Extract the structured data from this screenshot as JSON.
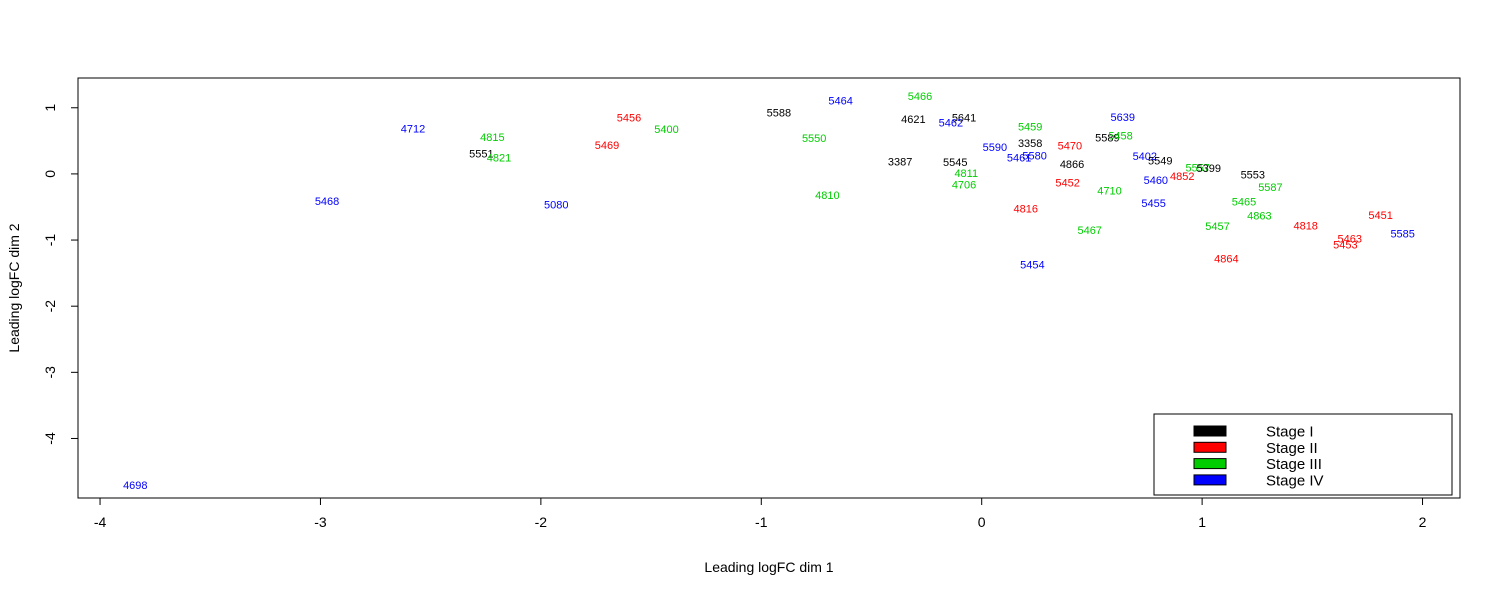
{
  "chart_data": {
    "type": "scatter",
    "title": "",
    "xlabel": "Leading logFC dim 1",
    "ylabel": "Leading logFC dim 2",
    "xlim": [
      -4.1,
      2.17
    ],
    "ylim": [
      -4.9,
      1.45
    ],
    "x_ticks": [
      -4,
      -3,
      -2,
      -1,
      0,
      1,
      2
    ],
    "y_ticks": [
      -4,
      -3,
      -2,
      -1,
      0,
      1
    ],
    "colors": {
      "Stage I": "#000000",
      "Stage II": "#ff0000",
      "Stage III": "#00cd00",
      "Stage IV": "#0000ff"
    },
    "legend": {
      "position": "bottom-right",
      "entries": [
        "Stage I",
        "Stage II",
        "Stage III",
        "Stage IV"
      ]
    },
    "points": [
      {
        "label": "4698",
        "x": -3.84,
        "y": -4.7,
        "stage": "Stage IV"
      },
      {
        "label": "4712",
        "x": -2.58,
        "y": 0.69,
        "stage": "Stage IV"
      },
      {
        "label": "5468",
        "x": -2.97,
        "y": -0.41,
        "stage": "Stage IV"
      },
      {
        "label": "4815",
        "x": -2.22,
        "y": 0.56,
        "stage": "Stage III"
      },
      {
        "label": "5551",
        "x": -2.27,
        "y": 0.31,
        "stage": "Stage I"
      },
      {
        "label": "4821",
        "x": -2.19,
        "y": 0.25,
        "stage": "Stage III"
      },
      {
        "label": "5080",
        "x": -1.93,
        "y": -0.46,
        "stage": "Stage IV"
      },
      {
        "label": "5456",
        "x": -1.6,
        "y": 0.85,
        "stage": "Stage II"
      },
      {
        "label": "5469",
        "x": -1.7,
        "y": 0.44,
        "stage": "Stage II"
      },
      {
        "label": "5400",
        "x": -1.43,
        "y": 0.68,
        "stage": "Stage III"
      },
      {
        "label": "5588",
        "x": -0.92,
        "y": 0.93,
        "stage": "Stage I"
      },
      {
        "label": "5464",
        "x": -0.64,
        "y": 1.11,
        "stage": "Stage IV"
      },
      {
        "label": "5550",
        "x": -0.76,
        "y": 0.54,
        "stage": "Stage III"
      },
      {
        "label": "4810",
        "x": -0.7,
        "y": -0.32,
        "stage": "Stage III"
      },
      {
        "label": "5466",
        "x": -0.28,
        "y": 1.18,
        "stage": "Stage III"
      },
      {
        "label": "4621",
        "x": -0.31,
        "y": 0.83,
        "stage": "Stage I"
      },
      {
        "label": "5641",
        "x": -0.08,
        "y": 0.85,
        "stage": "Stage I"
      },
      {
        "label": "5462",
        "x": -0.14,
        "y": 0.78,
        "stage": "Stage IV"
      },
      {
        "label": "3387",
        "x": -0.37,
        "y": 0.19,
        "stage": "Stage I"
      },
      {
        "label": "5545",
        "x": -0.12,
        "y": 0.18,
        "stage": "Stage I"
      },
      {
        "label": "4811",
        "x": -0.07,
        "y": 0.01,
        "stage": "Stage III"
      },
      {
        "label": "4706",
        "x": -0.08,
        "y": -0.16,
        "stage": "Stage III"
      },
      {
        "label": "5590",
        "x": 0.06,
        "y": 0.41,
        "stage": "Stage IV"
      },
      {
        "label": "5459",
        "x": 0.22,
        "y": 0.72,
        "stage": "Stage III"
      },
      {
        "label": "3358",
        "x": 0.22,
        "y": 0.47,
        "stage": "Stage I"
      },
      {
        "label": "5461",
        "x": 0.17,
        "y": 0.25,
        "stage": "Stage IV"
      },
      {
        "label": "5580",
        "x": 0.24,
        "y": 0.28,
        "stage": "Stage IV"
      },
      {
        "label": "5470",
        "x": 0.4,
        "y": 0.43,
        "stage": "Stage II"
      },
      {
        "label": "4866",
        "x": 0.41,
        "y": 0.15,
        "stage": "Stage I"
      },
      {
        "label": "5452",
        "x": 0.39,
        "y": -0.13,
        "stage": "Stage II"
      },
      {
        "label": "4816",
        "x": 0.2,
        "y": -0.52,
        "stage": "Stage II"
      },
      {
        "label": "5454",
        "x": 0.23,
        "y": -1.37,
        "stage": "Stage IV"
      },
      {
        "label": "5467",
        "x": 0.49,
        "y": -0.85,
        "stage": "Stage III"
      },
      {
        "label": "4710",
        "x": 0.58,
        "y": -0.25,
        "stage": "Stage III"
      },
      {
        "label": "5589",
        "x": 0.57,
        "y": 0.55,
        "stage": "Stage I"
      },
      {
        "label": "5458",
        "x": 0.63,
        "y": 0.58,
        "stage": "Stage III"
      },
      {
        "label": "5639",
        "x": 0.64,
        "y": 0.86,
        "stage": "Stage IV"
      },
      {
        "label": "5402",
        "x": 0.74,
        "y": 0.27,
        "stage": "Stage IV"
      },
      {
        "label": "5549",
        "x": 0.81,
        "y": 0.2,
        "stage": "Stage I"
      },
      {
        "label": "5460",
        "x": 0.79,
        "y": -0.09,
        "stage": "Stage IV"
      },
      {
        "label": "5455",
        "x": 0.78,
        "y": -0.44,
        "stage": "Stage IV"
      },
      {
        "label": "4852",
        "x": 0.91,
        "y": -0.03,
        "stage": "Stage II"
      },
      {
        "label": "5557",
        "x": 0.98,
        "y": 0.1,
        "stage": "Stage III"
      },
      {
        "label": "5399",
        "x": 1.03,
        "y": 0.09,
        "stage": "Stage I"
      },
      {
        "label": "5553",
        "x": 1.23,
        "y": -0.01,
        "stage": "Stage I"
      },
      {
        "label": "5587",
        "x": 1.31,
        "y": -0.2,
        "stage": "Stage III"
      },
      {
        "label": "5465",
        "x": 1.19,
        "y": -0.42,
        "stage": "Stage III"
      },
      {
        "label": "4863",
        "x": 1.26,
        "y": -0.63,
        "stage": "Stage III"
      },
      {
        "label": "5457",
        "x": 1.07,
        "y": -0.79,
        "stage": "Stage III"
      },
      {
        "label": "4864",
        "x": 1.11,
        "y": -1.28,
        "stage": "Stage II"
      },
      {
        "label": "4818",
        "x": 1.47,
        "y": -0.78,
        "stage": "Stage II"
      },
      {
        "label": "5451",
        "x": 1.81,
        "y": -0.62,
        "stage": "Stage II"
      },
      {
        "label": "5463",
        "x": 1.67,
        "y": -0.98,
        "stage": "Stage II"
      },
      {
        "label": "5453",
        "x": 1.65,
        "y": -1.07,
        "stage": "Stage II"
      },
      {
        "label": "5585",
        "x": 1.91,
        "y": -0.9,
        "stage": "Stage IV"
      }
    ]
  }
}
